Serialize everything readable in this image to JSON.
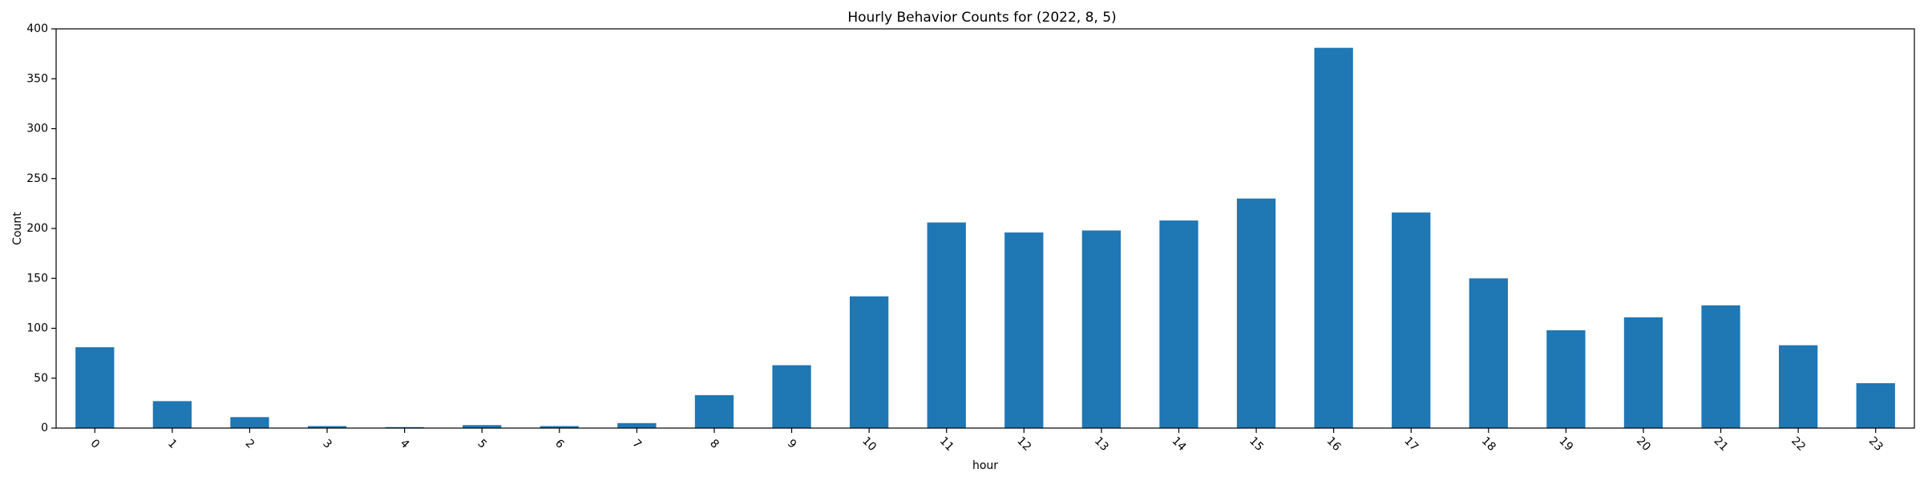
{
  "chart_data": {
    "type": "bar",
    "title": "Hourly Behavior Counts for (2022, 8, 5)",
    "xlabel": "hour",
    "ylabel": "Count",
    "categories": [
      "0",
      "1",
      "2",
      "3",
      "4",
      "5",
      "6",
      "7",
      "8",
      "9",
      "10",
      "11",
      "12",
      "13",
      "14",
      "15",
      "16",
      "17",
      "18",
      "19",
      "20",
      "21",
      "22",
      "23"
    ],
    "values": [
      81,
      27,
      11,
      2,
      1,
      3,
      2,
      5,
      33,
      63,
      132,
      206,
      196,
      198,
      208,
      230,
      381,
      216,
      150,
      98,
      111,
      123,
      83,
      45
    ],
    "ylim": [
      0,
      400
    ],
    "yticks": [
      0,
      50,
      100,
      150,
      200,
      250,
      300,
      350,
      400
    ],
    "grid": false,
    "bar_color": "#1f77b4"
  }
}
